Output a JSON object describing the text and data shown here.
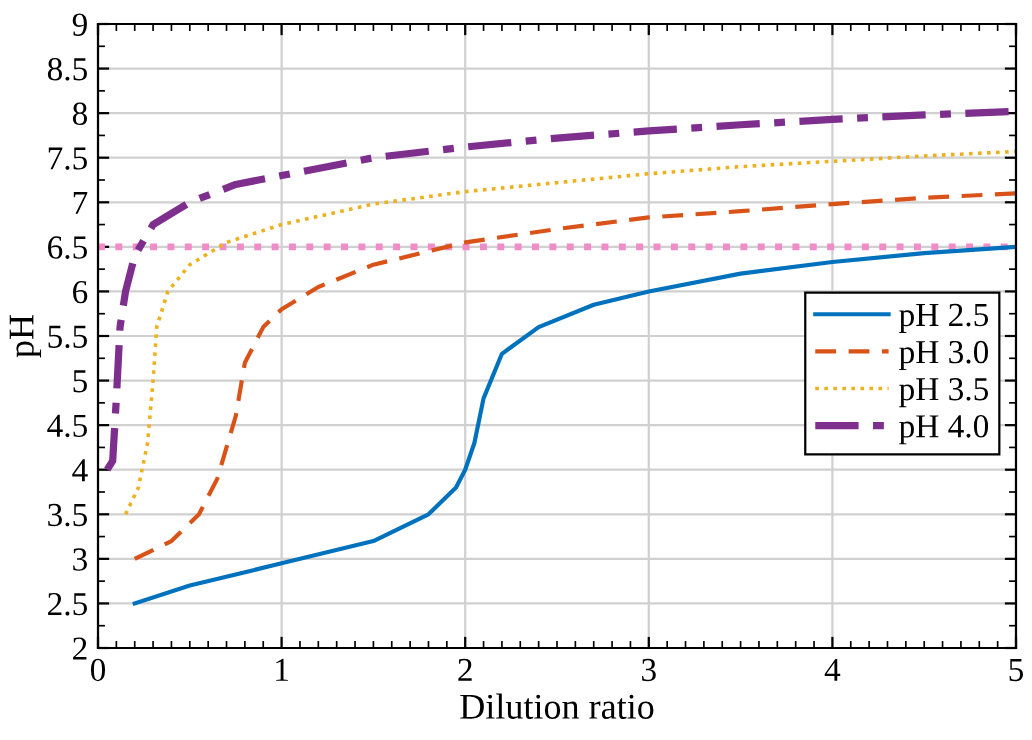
{
  "chart_data": {
    "type": "line",
    "xlabel": "Dilution ratio",
    "ylabel": "pH",
    "xlim": [
      0,
      5
    ],
    "xticks": [
      0,
      1,
      2,
      3,
      4,
      5
    ],
    "ylim": [
      2,
      9
    ],
    "yticks": [
      2,
      2.5,
      3,
      3.5,
      4,
      4.5,
      5,
      5.5,
      6,
      6.5,
      7,
      7.5,
      8,
      8.5,
      9
    ],
    "grid": true,
    "legend": "right",
    "ref_lines": [
      {
        "axis": "y",
        "value": 6.5,
        "color": "#f08cc8",
        "line_style": "dotted"
      }
    ],
    "series": [
      {
        "name": "pH 2.5",
        "color": "#0072bd",
        "line_style": "solid",
        "x": [
          0.2,
          0.5,
          1,
          1.5,
          1.8,
          1.95,
          2.0,
          2.05,
          2.1,
          2.2,
          2.4,
          2.7,
          3,
          3.5,
          4,
          4.5,
          5
        ],
        "values": [
          2.5,
          2.7,
          2.95,
          3.2,
          3.5,
          3.8,
          4.0,
          4.3,
          4.8,
          5.3,
          5.6,
          5.85,
          6.0,
          6.2,
          6.33,
          6.43,
          6.5
        ]
      },
      {
        "name": "pH 3.0",
        "color": "#d95319",
        "line_style": "dashed",
        "x": [
          0.2,
          0.4,
          0.55,
          0.65,
          0.75,
          0.8,
          0.9,
          1.0,
          1.2,
          1.5,
          2,
          2.5,
          3,
          3.5,
          4,
          4.5,
          5
        ],
        "values": [
          3.0,
          3.2,
          3.5,
          3.9,
          4.6,
          5.2,
          5.6,
          5.8,
          6.05,
          6.3,
          6.55,
          6.7,
          6.83,
          6.9,
          6.98,
          7.05,
          7.1
        ]
      },
      {
        "name": "pH 3.5",
        "color": "#edb120",
        "line_style": "dotted",
        "x": [
          0.15,
          0.22,
          0.27,
          0.3,
          0.32,
          0.38,
          0.5,
          0.7,
          1,
          1.5,
          2,
          2.5,
          3,
          3.5,
          4,
          4.5,
          5
        ],
        "values": [
          3.5,
          3.8,
          4.3,
          5.0,
          5.6,
          6.0,
          6.3,
          6.55,
          6.75,
          6.98,
          7.12,
          7.22,
          7.32,
          7.4,
          7.46,
          7.52,
          7.57
        ]
      },
      {
        "name": "pH 4.0",
        "color": "#7e2f8e",
        "line_style": "dashdot",
        "x": [
          0.05,
          0.08,
          0.1,
          0.12,
          0.15,
          0.2,
          0.3,
          0.5,
          0.75,
          1,
          1.5,
          2,
          2.5,
          3,
          3.5,
          4,
          4.5,
          5
        ],
        "values": [
          4.0,
          4.1,
          4.8,
          5.6,
          6.0,
          6.4,
          6.75,
          7.0,
          7.2,
          7.3,
          7.5,
          7.62,
          7.72,
          7.8,
          7.87,
          7.93,
          7.98,
          8.02
        ]
      }
    ]
  }
}
